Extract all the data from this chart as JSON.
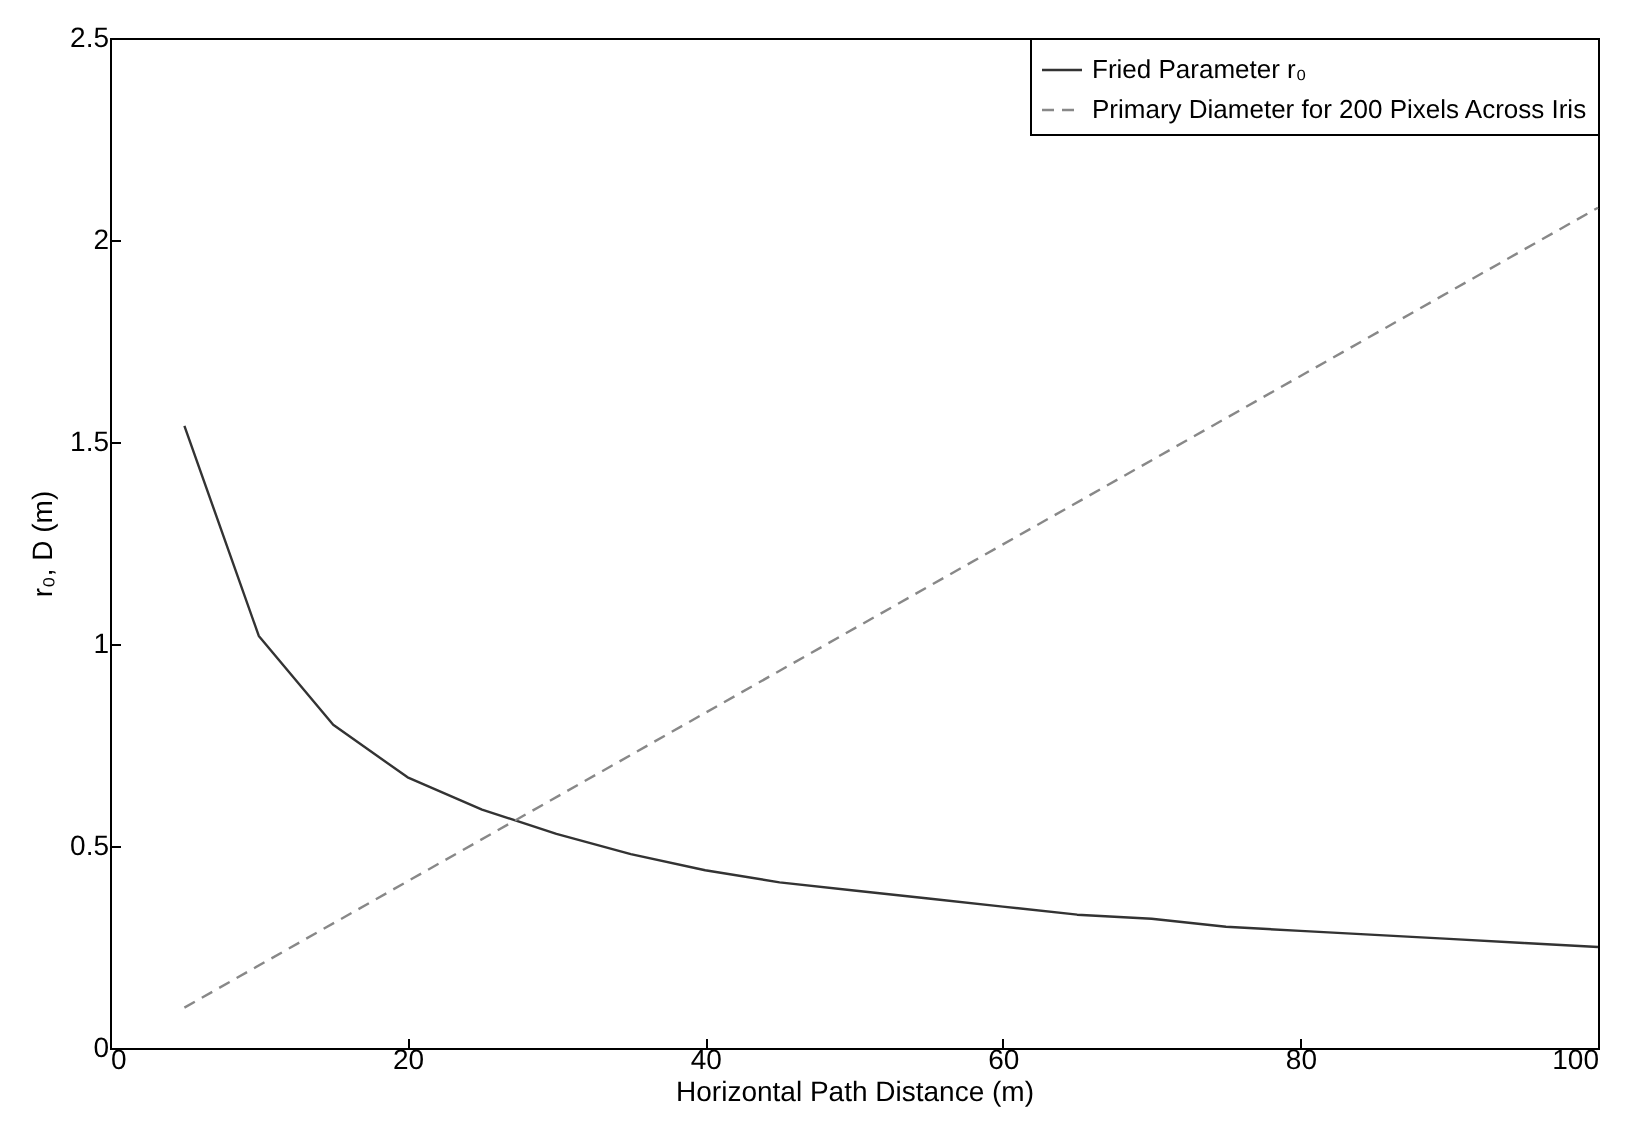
{
  "chart_data": {
    "type": "line",
    "xlabel": "Horizontal Path Distance (m)",
    "ylabel": "r₀, D (m)",
    "xlim": [
      0,
      100
    ],
    "xticks": [
      0,
      20,
      40,
      60,
      80,
      100
    ],
    "ylim": [
      0,
      2.5
    ],
    "yticks": [
      {
        "value": 0,
        "label": "0"
      },
      0.5,
      {
        "value": 1,
        "label": "1"
      },
      1.5,
      {
        "value": 2,
        "label": "2"
      },
      2.5
    ],
    "grid": false,
    "legend": "top right",
    "marker": "none",
    "series": [
      {
        "name": "Fried Parameter r₀",
        "color": "#333333",
        "line_style": "solid",
        "x": [
          5,
          10,
          15,
          20,
          25,
          30,
          35,
          40,
          45,
          50,
          55,
          60,
          65,
          70,
          75,
          80,
          85,
          90,
          95,
          100
        ],
        "values": [
          1.54,
          1.02,
          0.8,
          0.67,
          0.59,
          0.53,
          0.48,
          0.44,
          0.41,
          0.39,
          0.37,
          0.35,
          0.33,
          0.32,
          0.3,
          0.29,
          0.28,
          0.27,
          0.26,
          0.25
        ]
      },
      {
        "name": "Primary Diameter for 200 Pixels Across Iris",
        "color": "#888888",
        "line_style": "dashed",
        "x": [
          5,
          100
        ],
        "values": [
          0.1,
          2.08
        ]
      }
    ]
  }
}
